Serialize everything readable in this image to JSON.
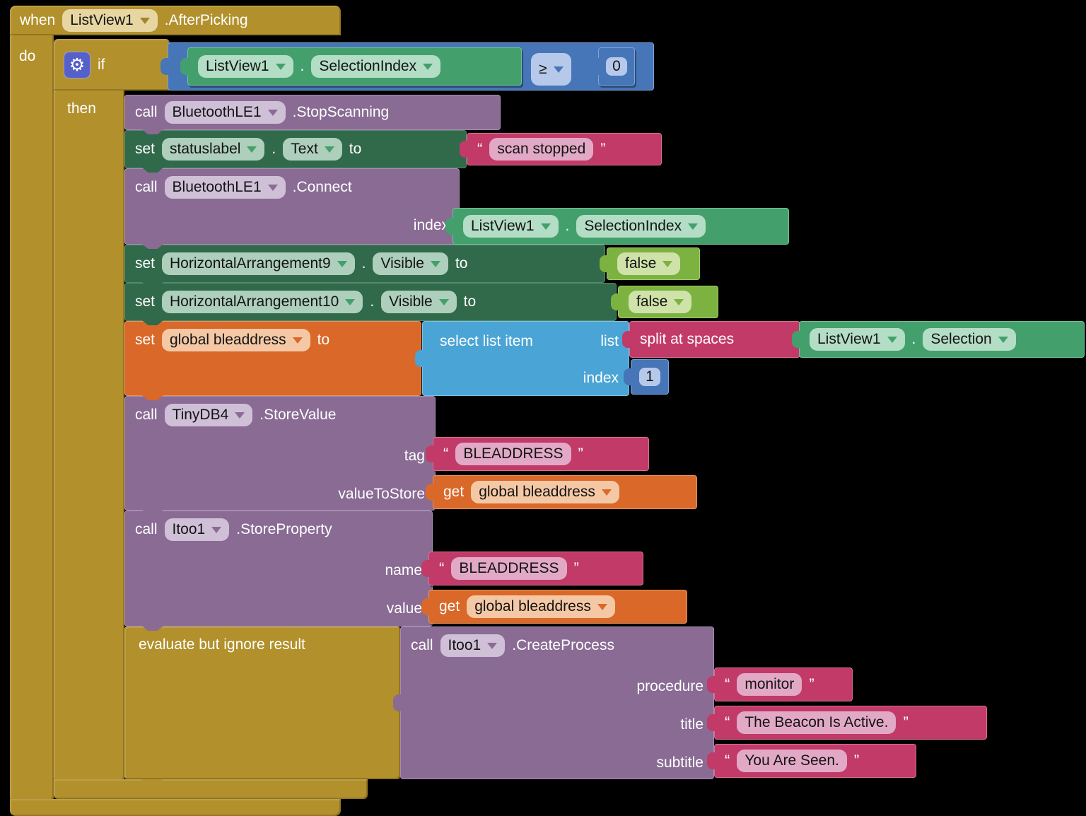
{
  "when_block": {
    "keyword": "when",
    "component": "ListView1",
    "event": ".AfterPicking",
    "do_label": "do"
  },
  "if_block": {
    "if_label": "if",
    "then_label": "then"
  },
  "condition": {
    "component": "ListView1",
    "dot": ".",
    "property": "SelectionIndex",
    "operator": "≥",
    "value": "0"
  },
  "stop_scanning": {
    "call": "call",
    "component": "BluetoothLE1",
    "method": ".StopScanning"
  },
  "set_status": {
    "set": "set",
    "component": "statuslabel",
    "dot": ".",
    "property": "Text",
    "to": "to",
    "quote_open": "“",
    "quote_close": "”",
    "value": "scan stopped"
  },
  "connect": {
    "call": "call",
    "component": "BluetoothLE1",
    "method": ".Connect",
    "param_index": "index",
    "arg_component": "ListView1",
    "dot": ".",
    "arg_property": "SelectionIndex"
  },
  "set_visible9": {
    "set": "set",
    "component": "HorizontalArrangement9",
    "dot": ".",
    "property": "Visible",
    "to": "to",
    "value": "false"
  },
  "set_visible10": {
    "set": "set",
    "component": "HorizontalArrangement10",
    "dot": ".",
    "property": "Visible",
    "to": "to",
    "value": "false"
  },
  "set_bleaddress": {
    "set": "set",
    "variable": "global bleaddress",
    "to": "to",
    "select_label": "select list item",
    "list_label": "list",
    "index_label": "index",
    "index_value": "1",
    "split_label": "split at spaces",
    "arg_component": "ListView1",
    "dot": ".",
    "arg_property": "Selection"
  },
  "store_value": {
    "call": "call",
    "component": "TinyDB4",
    "method": ".StoreValue",
    "tag_label": "tag",
    "tag_value": "BLEADDRESS",
    "value_label": "valueToStore",
    "get": "get",
    "variable": "global bleaddress",
    "quote_open": "“",
    "quote_close": "”"
  },
  "store_property": {
    "call": "call",
    "component": "Itoo1",
    "method": ".StoreProperty",
    "name_label": "name",
    "name_value": "BLEADDRESS",
    "value_label": "value",
    "get": "get",
    "variable": "global bleaddress",
    "quote_open": "“",
    "quote_close": "”"
  },
  "create_process": {
    "wrapper_label": "evaluate but ignore result",
    "call": "call",
    "component": "Itoo1",
    "method": ".CreateProcess",
    "procedure_label": "procedure",
    "procedure_value": "monitor",
    "title_label": "title",
    "title_value": "The Beacon Is Active.",
    "subtitle_label": "subtitle",
    "subtitle_value": "You Are Seen.",
    "quote_open": "“",
    "quote_close": "”"
  },
  "colors": {
    "control_gold": "#b2902c",
    "component_purple": "#8a6b94",
    "set_property_green": "#31694b",
    "getter_green": "#43a06c",
    "logic_math_blue": "#4676b8",
    "list_cyan": "#4aa4d5",
    "text_magenta": "#c23a68",
    "variable_orange": "#d96829",
    "logic_value_green": "#7cb23f",
    "gear_indigo": "#5560c8"
  }
}
